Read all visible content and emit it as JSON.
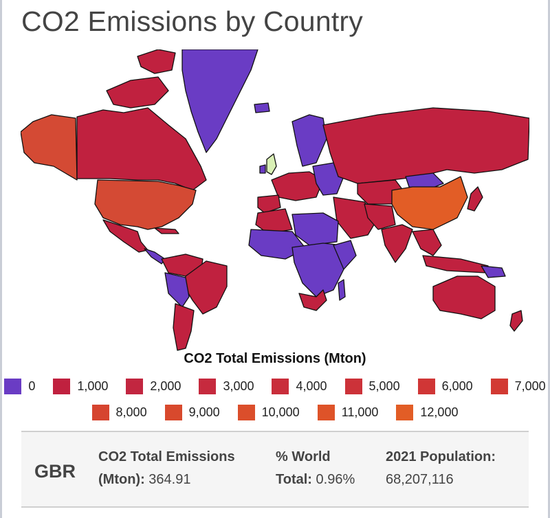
{
  "title": "CO2 Emissions by Country",
  "legend": {
    "title": "CO2 Total Emissions (Mton)",
    "items": [
      {
        "label": "0",
        "color": "#6a3cc4"
      },
      {
        "label": "1,000",
        "color": "#c0213f"
      },
      {
        "label": "2,000",
        "color": "#c22640"
      },
      {
        "label": "3,000",
        "color": "#c62a3e"
      },
      {
        "label": "4,000",
        "color": "#c92e3b"
      },
      {
        "label": "5,000",
        "color": "#cc3239"
      },
      {
        "label": "6,000",
        "color": "#d03636"
      },
      {
        "label": "7,000",
        "color": "#d23a33"
      },
      {
        "label": "8,000",
        "color": "#d6442f"
      },
      {
        "label": "9,000",
        "color": "#d8492d"
      },
      {
        "label": "10,000",
        "color": "#db4e2b"
      },
      {
        "label": "11,000",
        "color": "#de5329"
      },
      {
        "label": "12,000",
        "color": "#e25d26"
      }
    ]
  },
  "map_colors": {
    "ocean": "#ffffff",
    "low": "#6a3cc4",
    "mid": "#c0213f",
    "usa": "#d44a34",
    "china": "#e25d26",
    "selected": "#d9f0b5",
    "border": "#111111"
  },
  "selected_country": {
    "code": "GBR",
    "emissions_label": "CO2 Total Emissions",
    "emissions_unit": "(Mton):",
    "emissions_value": "364.91",
    "world_label": "% World",
    "world_unit": "Total:",
    "world_value": "0.96%",
    "population_label": "2021 Population:",
    "population_value": "68,207,116"
  }
}
